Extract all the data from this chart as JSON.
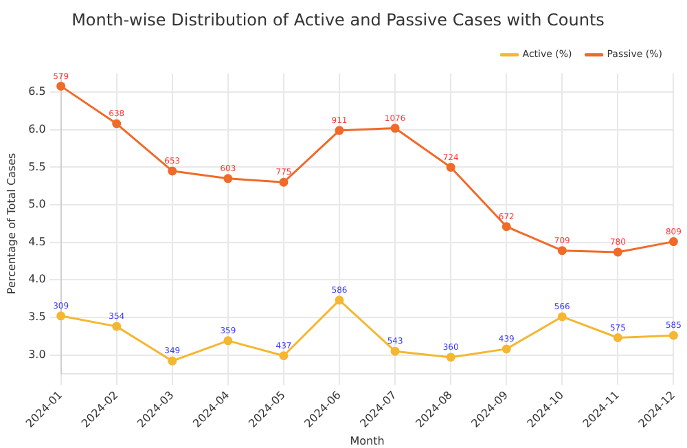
{
  "chart_data": {
    "type": "line",
    "title": "Month-wise Distribution of Active and Passive Cases with Counts",
    "xlabel": "Month",
    "ylabel": "Percentage of Total Cases",
    "categories": [
      "2024-01",
      "2024-02",
      "2024-03",
      "2024-04",
      "2024-05",
      "2024-06",
      "2024-07",
      "2024-08",
      "2024-09",
      "2024-10",
      "2024-11",
      "2024-12"
    ],
    "series": [
      {
        "name": "Active (%)",
        "color": "#f5b731",
        "values": [
          3.52,
          3.38,
          2.92,
          3.19,
          2.99,
          3.73,
          3.05,
          2.97,
          3.08,
          3.51,
          3.23,
          3.26
        ]
      },
      {
        "name": "Passive (%)",
        "color": "#f06a28",
        "values": [
          6.58,
          6.08,
          5.45,
          5.35,
          5.3,
          5.99,
          6.02,
          5.5,
          4.71,
          4.39,
          4.37,
          4.51
        ]
      }
    ],
    "annotations": [
      {
        "text": "309",
        "x": "2024-01",
        "y": 3.52
      },
      {
        "text": "354",
        "x": "2024-02",
        "y": 3.38
      },
      {
        "text": "349",
        "x": "2024-03",
        "y": 2.92
      },
      {
        "text": "359",
        "x": "2024-04",
        "y": 3.19
      },
      {
        "text": "437",
        "x": "2024-05",
        "y": 2.99
      },
      {
        "text": "586",
        "x": "2024-06",
        "y": 3.73
      },
      {
        "text": "543",
        "x": "2024-07",
        "y": 3.05
      },
      {
        "text": "360",
        "x": "2024-08",
        "y": 2.97
      },
      {
        "text": "439",
        "x": "2024-09",
        "y": 3.08
      },
      {
        "text": "566",
        "x": "2024-10",
        "y": 3.51
      },
      {
        "text": "575",
        "x": "2024-11",
        "y": 3.23
      },
      {
        "text": "585",
        "x": "2024-12",
        "y": 3.26
      },
      {
        "text": "579",
        "x": "2024-01",
        "y": 6.58
      },
      {
        "text": "638",
        "x": "2024-02",
        "y": 6.08
      },
      {
        "text": "653",
        "x": "2024-03",
        "y": 5.45
      },
      {
        "text": "603",
        "x": "2024-04",
        "y": 5.35
      },
      {
        "text": "775",
        "x": "2024-05",
        "y": 5.3
      },
      {
        "text": "911",
        "x": "2024-06",
        "y": 5.99
      },
      {
        "text": "1076",
        "x": "2024-07",
        "y": 6.02
      },
      {
        "text": "724",
        "x": "2024-08",
        "y": 5.5
      },
      {
        "text": "672",
        "x": "2024-09",
        "y": 4.71
      },
      {
        "text": "709",
        "x": "2024-10",
        "y": 4.39
      },
      {
        "text": "780",
        "x": "2024-11",
        "y": 4.37
      },
      {
        "text": "809",
        "x": "2024-12",
        "y": 4.51
      }
    ],
    "ylim": [
      2.75,
      6.75
    ],
    "yticks": [
      {
        "value": 3,
        "label": "3.0"
      },
      3.5,
      {
        "value": 4,
        "label": "4.0"
      },
      4.5,
      {
        "value": 5,
        "label": "5.0"
      },
      5.5,
      {
        "value": 6,
        "label": "6.0"
      },
      6.5
    ],
    "grid": true,
    "legend": "top right",
    "marker": "circle",
    "line_style": "solid"
  }
}
